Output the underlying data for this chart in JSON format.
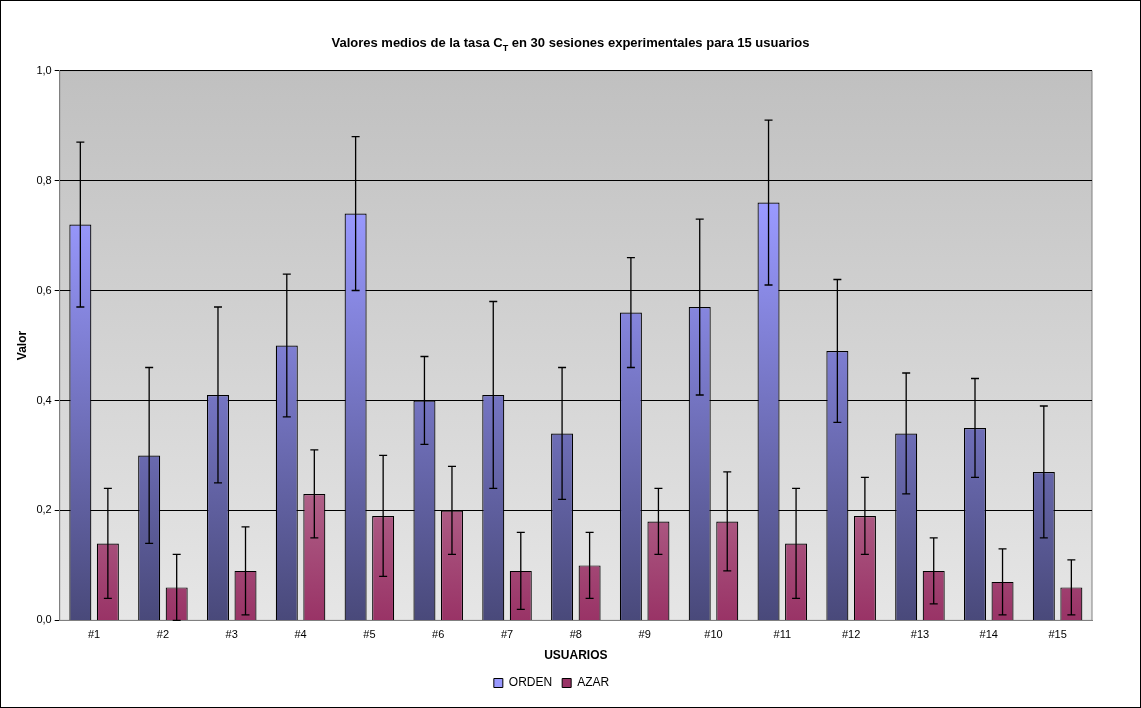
{
  "chart_data": {
    "type": "bar",
    "title": "Valores medios de la tasa C$_{T}$ en 30 sesiones experimentales para 15 usuarios",
    "xlabel": "USUARIOS",
    "ylabel": "Valor",
    "categories": [
      "#1",
      "#2",
      "#3",
      "#4",
      "#5",
      "#6",
      "#7",
      "#8",
      "#9",
      "#10",
      "#11",
      "#12",
      "#13",
      "#14",
      "#15"
    ],
    "series": [
      {
        "name": "ORDEN",
        "color": "#9999ff",
        "values": [
          0.72,
          0.3,
          0.41,
          0.5,
          0.74,
          0.4,
          0.41,
          0.34,
          0.56,
          0.57,
          0.76,
          0.49,
          0.34,
          0.35,
          0.27
        ],
        "errors": [
          0.15,
          0.16,
          0.16,
          0.13,
          0.14,
          0.08,
          0.17,
          0.12,
          0.1,
          0.16,
          0.15,
          0.13,
          0.11,
          0.09,
          0.12
        ]
      },
      {
        "name": "AZAR",
        "color": "#993366",
        "values": [
          0.14,
          0.06,
          0.09,
          0.23,
          0.19,
          0.2,
          0.09,
          0.1,
          0.18,
          0.18,
          0.14,
          0.19,
          0.09,
          0.07,
          0.06
        ],
        "errors": [
          0.1,
          0.06,
          0.08,
          0.08,
          0.11,
          0.08,
          0.07,
          0.06,
          0.06,
          0.09,
          0.1,
          0.07,
          0.06,
          0.06,
          0.05
        ]
      }
    ],
    "ylim": [
      0,
      1
    ],
    "yticks": [
      {
        "value": 0,
        "label": "0,0"
      },
      {
        "value": 0.2,
        "label": "0,2"
      },
      {
        "value": 0.4,
        "label": "0,4"
      },
      {
        "value": 0.6,
        "label": "0,6"
      },
      {
        "value": 0.8,
        "label": "0,8"
      },
      {
        "value": 1,
        "label": "1,0"
      }
    ],
    "grid": "y",
    "legend": "bottom"
  }
}
